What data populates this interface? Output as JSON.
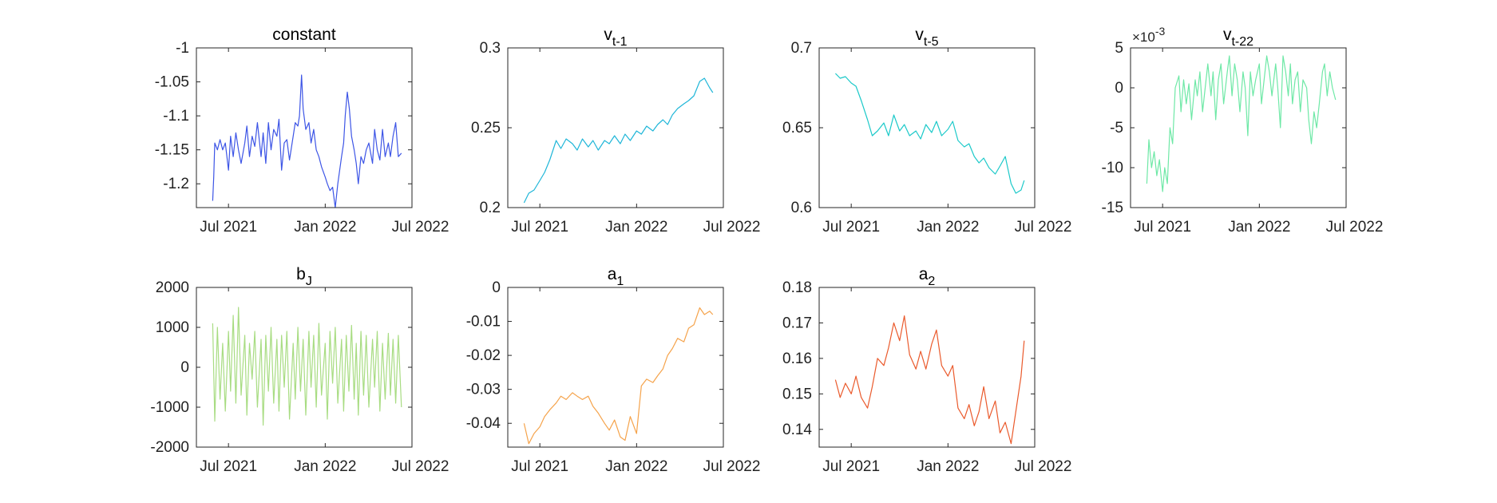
{
  "chart_data": [
    {
      "type": "line",
      "title": "constant",
      "color": "#3d55e6",
      "ylim": [
        -1.235,
        -1.0
      ],
      "yticks": [
        -1.2,
        -1.15,
        -1.1,
        -1.05,
        -1
      ],
      "ytick_labels": [
        "-1.2",
        "-1.15",
        "-1.1",
        "-1.05",
        "-1"
      ],
      "xlim": [
        "2021-05-01",
        "2022-06-15"
      ],
      "xticks": [
        "2021-07-01",
        "2022-01-01",
        "2022-07-01"
      ],
      "xtick_labels": [
        "Jul 2021",
        "Jan 2022",
        "Jul 2022"
      ],
      "x": [
        "2021-06-01",
        "2021-06-03",
        "2021-06-05",
        "2021-06-10",
        "2021-06-15",
        "2021-06-20",
        "2021-06-25",
        "2021-07-01",
        "2021-07-05",
        "2021-07-10",
        "2021-07-15",
        "2021-07-20",
        "2021-07-25",
        "2021-08-01",
        "2021-08-05",
        "2021-08-10",
        "2021-08-15",
        "2021-08-20",
        "2021-08-25",
        "2021-09-01",
        "2021-09-05",
        "2021-09-10",
        "2021-09-15",
        "2021-09-20",
        "2021-09-25",
        "2021-10-01",
        "2021-10-05",
        "2021-10-10",
        "2021-10-15",
        "2021-10-20",
        "2021-10-25",
        "2021-11-01",
        "2021-11-05",
        "2021-11-10",
        "2021-11-13",
        "2021-11-17",
        "2021-11-20",
        "2021-11-25",
        "2021-12-01",
        "2021-12-05",
        "2021-12-10",
        "2021-12-15",
        "2021-12-20",
        "2021-12-25",
        "2022-01-01",
        "2022-01-05",
        "2022-01-10",
        "2022-01-15",
        "2022-01-20",
        "2022-01-25",
        "2022-02-01",
        "2022-02-05",
        "2022-02-08",
        "2022-02-12",
        "2022-02-16",
        "2022-02-20",
        "2022-02-25",
        "2022-03-01",
        "2022-03-05",
        "2022-03-10",
        "2022-03-15",
        "2022-03-20",
        "2022-03-25",
        "2022-04-01",
        "2022-04-05",
        "2022-04-10",
        "2022-04-15",
        "2022-04-20",
        "2022-04-25",
        "2022-05-01",
        "2022-05-05",
        "2022-05-10",
        "2022-05-15",
        "2022-05-20",
        "2022-05-26"
      ],
      "y": [
        -1.225,
        -1.19,
        -1.14,
        -1.15,
        -1.135,
        -1.15,
        -1.14,
        -1.18,
        -1.13,
        -1.16,
        -1.125,
        -1.15,
        -1.17,
        -1.14,
        -1.115,
        -1.16,
        -1.13,
        -1.145,
        -1.11,
        -1.16,
        -1.125,
        -1.17,
        -1.11,
        -1.15,
        -1.12,
        -1.13,
        -1.105,
        -1.18,
        -1.14,
        -1.135,
        -1.165,
        -1.13,
        -1.11,
        -1.115,
        -1.1,
        -1.04,
        -1.09,
        -1.12,
        -1.11,
        -1.14,
        -1.12,
        -1.15,
        -1.16,
        -1.175,
        -1.19,
        -1.2,
        -1.21,
        -1.205,
        -1.235,
        -1.2,
        -1.16,
        -1.14,
        -1.1,
        -1.065,
        -1.09,
        -1.13,
        -1.15,
        -1.17,
        -1.2,
        -1.16,
        -1.17,
        -1.15,
        -1.14,
        -1.17,
        -1.12,
        -1.15,
        -1.165,
        -1.12,
        -1.16,
        -1.14,
        -1.16,
        -1.13,
        -1.11,
        -1.16,
        -1.155
      ]
    },
    {
      "type": "line",
      "title": "v",
      "title_subscript": "t-1",
      "color": "#1fb6d8",
      "ylim": [
        0.2,
        0.3
      ],
      "yticks": [
        0.2,
        0.25,
        0.3
      ],
      "ytick_labels": [
        "0.2",
        "0.25",
        "0.3"
      ],
      "xlim": [
        "2021-05-01",
        "2022-06-15"
      ],
      "xticks": [
        "2021-07-01",
        "2022-01-01",
        "2022-07-01"
      ],
      "xtick_labels": [
        "Jul 2021",
        "Jan 2022",
        "Jul 2022"
      ],
      "x": [
        "2021-06-01",
        "2021-06-10",
        "2021-06-20",
        "2021-07-01",
        "2021-07-10",
        "2021-07-20",
        "2021-08-01",
        "2021-08-10",
        "2021-08-20",
        "2021-09-01",
        "2021-09-10",
        "2021-09-20",
        "2021-10-01",
        "2021-10-10",
        "2021-10-20",
        "2021-11-01",
        "2021-11-10",
        "2021-11-20",
        "2021-12-01",
        "2021-12-10",
        "2021-12-20",
        "2022-01-01",
        "2022-01-10",
        "2022-01-20",
        "2022-02-01",
        "2022-02-10",
        "2022-02-20",
        "2022-03-01",
        "2022-03-10",
        "2022-03-20",
        "2022-04-01",
        "2022-04-10",
        "2022-04-20",
        "2022-05-01",
        "2022-05-10",
        "2022-05-20",
        "2022-05-26"
      ],
      "y": [
        0.203,
        0.209,
        0.211,
        0.217,
        0.222,
        0.23,
        0.242,
        0.237,
        0.243,
        0.24,
        0.236,
        0.243,
        0.238,
        0.242,
        0.236,
        0.242,
        0.24,
        0.245,
        0.24,
        0.246,
        0.242,
        0.248,
        0.246,
        0.251,
        0.248,
        0.252,
        0.255,
        0.252,
        0.258,
        0.262,
        0.265,
        0.267,
        0.27,
        0.279,
        0.281,
        0.275,
        0.272
      ]
    },
    {
      "type": "line",
      "title": "v",
      "title_subscript": "t-5",
      "color": "#1bc9c9",
      "ylim": [
        0.6,
        0.7
      ],
      "yticks": [
        0.6,
        0.65,
        0.7
      ],
      "ytick_labels": [
        "0.6",
        "0.65",
        "0.7"
      ],
      "xlim": [
        "2021-05-01",
        "2022-06-15"
      ],
      "xticks": [
        "2021-07-01",
        "2022-01-01",
        "2022-07-01"
      ],
      "xtick_labels": [
        "Jul 2021",
        "Jan 2022",
        "Jul 2022"
      ],
      "x": [
        "2021-06-01",
        "2021-06-10",
        "2021-06-20",
        "2021-07-01",
        "2021-07-10",
        "2021-07-20",
        "2021-08-01",
        "2021-08-10",
        "2021-08-20",
        "2021-09-01",
        "2021-09-10",
        "2021-09-20",
        "2021-10-01",
        "2021-10-10",
        "2021-10-20",
        "2021-11-01",
        "2021-11-10",
        "2021-11-20",
        "2021-12-01",
        "2021-12-10",
        "2021-12-20",
        "2022-01-01",
        "2022-01-10",
        "2022-01-20",
        "2022-02-01",
        "2022-02-10",
        "2022-02-20",
        "2022-03-01",
        "2022-03-10",
        "2022-03-20",
        "2022-04-01",
        "2022-04-10",
        "2022-04-20",
        "2022-05-01",
        "2022-05-10",
        "2022-05-20",
        "2022-05-26"
      ],
      "y": [
        0.684,
        0.681,
        0.682,
        0.678,
        0.676,
        0.667,
        0.655,
        0.645,
        0.648,
        0.653,
        0.645,
        0.658,
        0.648,
        0.652,
        0.645,
        0.648,
        0.643,
        0.652,
        0.647,
        0.654,
        0.645,
        0.649,
        0.654,
        0.642,
        0.638,
        0.64,
        0.632,
        0.628,
        0.631,
        0.625,
        0.621,
        0.626,
        0.632,
        0.615,
        0.609,
        0.611,
        0.617
      ]
    },
    {
      "type": "line",
      "title": "v",
      "title_subscript": "t-22",
      "color": "#6ee8a6",
      "ylim": [
        -15,
        5
      ],
      "yticks": [
        -15,
        -10,
        -5,
        0,
        5
      ],
      "ytick_labels": [
        "-15",
        "-10",
        "-5",
        "0",
        "5"
      ],
      "y_exponent": "×10",
      "y_exponent_power": "-3",
      "xlim": [
        "2021-05-01",
        "2022-06-15"
      ],
      "xticks": [
        "2021-07-01",
        "2022-01-01",
        "2022-07-01"
      ],
      "xtick_labels": [
        "Jul 2021",
        "Jan 2022",
        "Jul 2022"
      ],
      "x": [
        "2021-06-01",
        "2021-06-05",
        "2021-06-10",
        "2021-06-15",
        "2021-06-20",
        "2021-06-25",
        "2021-07-01",
        "2021-07-05",
        "2021-07-10",
        "2021-07-15",
        "2021-07-20",
        "2021-07-25",
        "2021-08-01",
        "2021-08-05",
        "2021-08-10",
        "2021-08-15",
        "2021-08-20",
        "2021-08-25",
        "2021-09-01",
        "2021-09-05",
        "2021-09-10",
        "2021-09-15",
        "2021-09-20",
        "2021-09-25",
        "2021-10-01",
        "2021-10-05",
        "2021-10-10",
        "2021-10-15",
        "2021-10-20",
        "2021-10-25",
        "2021-11-01",
        "2021-11-05",
        "2021-11-10",
        "2021-11-15",
        "2021-11-20",
        "2021-11-25",
        "2021-12-01",
        "2021-12-05",
        "2021-12-10",
        "2021-12-15",
        "2021-12-20",
        "2021-12-25",
        "2022-01-01",
        "2022-01-05",
        "2022-01-10",
        "2022-01-15",
        "2022-01-20",
        "2022-01-25",
        "2022-02-01",
        "2022-02-05",
        "2022-02-10",
        "2022-02-15",
        "2022-02-20",
        "2022-02-25",
        "2022-03-01",
        "2022-03-05",
        "2022-03-10",
        "2022-03-15",
        "2022-03-20",
        "2022-03-25",
        "2022-04-01",
        "2022-04-05",
        "2022-04-10",
        "2022-04-15",
        "2022-04-20",
        "2022-04-25",
        "2022-05-01",
        "2022-05-05",
        "2022-05-10",
        "2022-05-15",
        "2022-05-20",
        "2022-05-26"
      ],
      "y": [
        -12,
        -6.5,
        -10,
        -8,
        -11,
        -9,
        -13,
        -10,
        -12,
        -5,
        -7,
        0,
        1.5,
        -3,
        1,
        -2,
        0.5,
        -4,
        1,
        -1,
        2,
        -3,
        0,
        3,
        -1,
        2,
        -4,
        1,
        3,
        -2,
        2,
        4,
        -1,
        3,
        1,
        -3,
        2,
        0,
        -6,
        2,
        -1,
        1,
        3,
        -2,
        1,
        4,
        2,
        -1,
        3,
        0,
        -5,
        4,
        2,
        -1,
        3,
        -2,
        1,
        2,
        -3,
        1,
        0,
        -4,
        -7,
        -3,
        -5,
        -2,
        2,
        3,
        -1,
        2,
        0,
        -1.5
      ]
    },
    {
      "type": "line",
      "title": "b",
      "title_subscript": "J",
      "color": "#a8dc82",
      "ylim": [
        -2000,
        2000
      ],
      "yticks": [
        -2000,
        -1000,
        0,
        1000,
        2000
      ],
      "ytick_labels": [
        "-2000",
        "-1000",
        "0",
        "1000",
        "2000"
      ],
      "xlim": [
        "2021-05-01",
        "2022-06-15"
      ],
      "xticks": [
        "2021-07-01",
        "2022-01-01",
        "2022-07-01"
      ],
      "xtick_labels": [
        "Jul 2021",
        "Jan 2022",
        "Jul 2022"
      ],
      "x": [
        "2021-06-01",
        "2021-06-05",
        "2021-06-10",
        "2021-06-15",
        "2021-06-20",
        "2021-06-25",
        "2021-07-01",
        "2021-07-05",
        "2021-07-10",
        "2021-07-15",
        "2021-07-20",
        "2021-07-25",
        "2021-08-01",
        "2021-08-05",
        "2021-08-10",
        "2021-08-15",
        "2021-08-20",
        "2021-08-25",
        "2021-09-01",
        "2021-09-05",
        "2021-09-10",
        "2021-09-15",
        "2021-09-20",
        "2021-09-25",
        "2021-10-01",
        "2021-10-05",
        "2021-10-10",
        "2021-10-15",
        "2021-10-20",
        "2021-10-25",
        "2021-11-01",
        "2021-11-05",
        "2021-11-10",
        "2021-11-15",
        "2021-11-20",
        "2021-11-25",
        "2021-12-01",
        "2021-12-05",
        "2021-12-10",
        "2021-12-15",
        "2021-12-20",
        "2021-12-25",
        "2022-01-01",
        "2022-01-05",
        "2022-01-10",
        "2022-01-15",
        "2022-01-20",
        "2022-01-25",
        "2022-02-01",
        "2022-02-05",
        "2022-02-10",
        "2022-02-15",
        "2022-02-20",
        "2022-02-25",
        "2022-03-01",
        "2022-03-05",
        "2022-03-10",
        "2022-03-15",
        "2022-03-20",
        "2022-03-25",
        "2022-04-01",
        "2022-04-05",
        "2022-04-10",
        "2022-04-15",
        "2022-04-20",
        "2022-04-25",
        "2022-05-01",
        "2022-05-05",
        "2022-05-10",
        "2022-05-15",
        "2022-05-20",
        "2022-05-26"
      ],
      "y": [
        1100,
        -1350,
        1000,
        -800,
        600,
        -1100,
        900,
        -600,
        1300,
        -900,
        1500,
        -700,
        800,
        -1200,
        600,
        -300,
        900,
        -1000,
        700,
        -1450,
        800,
        -600,
        1000,
        -900,
        700,
        -1100,
        800,
        -500,
        900,
        -1300,
        600,
        -800,
        1000,
        -600,
        700,
        -1200,
        900,
        -500,
        800,
        -1000,
        1100,
        -700,
        600,
        -1300,
        900,
        -400,
        1000,
        -900,
        700,
        -1100,
        800,
        -600,
        1050,
        -800,
        600,
        -1200,
        900,
        -700,
        800,
        -1000,
        700,
        -500,
        900,
        -1100,
        600,
        -800,
        850,
        -700,
        700,
        -900,
        800,
        -1000
      ]
    },
    {
      "type": "line",
      "title": "a",
      "title_subscript": "1",
      "color": "#f5a34b",
      "ylim": [
        -0.047,
        0.0
      ],
      "yticks": [
        -0.04,
        -0.03,
        -0.02,
        -0.01,
        0
      ],
      "ytick_labels": [
        "-0.04",
        "-0.03",
        "-0.02",
        "-0.01",
        "0"
      ],
      "xlim": [
        "2021-05-01",
        "2022-06-15"
      ],
      "xticks": [
        "2021-07-01",
        "2022-01-01",
        "2022-07-01"
      ],
      "xtick_labels": [
        "Jul 2021",
        "Jan 2022",
        "Jul 2022"
      ],
      "x": [
        "2021-06-01",
        "2021-06-10",
        "2021-06-20",
        "2021-07-01",
        "2021-07-10",
        "2021-07-20",
        "2021-08-01",
        "2021-08-10",
        "2021-08-20",
        "2021-09-01",
        "2021-09-10",
        "2021-09-20",
        "2021-10-01",
        "2021-10-10",
        "2021-10-20",
        "2021-11-01",
        "2021-11-10",
        "2021-11-20",
        "2021-12-01",
        "2021-12-10",
        "2021-12-20",
        "2022-01-01",
        "2022-01-10",
        "2022-01-20",
        "2022-02-01",
        "2022-02-10",
        "2022-02-20",
        "2022-03-01",
        "2022-03-10",
        "2022-03-20",
        "2022-04-01",
        "2022-04-10",
        "2022-04-20",
        "2022-05-01",
        "2022-05-10",
        "2022-05-20",
        "2022-05-26"
      ],
      "y": [
        -0.04,
        -0.046,
        -0.043,
        -0.041,
        -0.038,
        -0.036,
        -0.034,
        -0.032,
        -0.033,
        -0.031,
        -0.032,
        -0.033,
        -0.032,
        -0.035,
        -0.037,
        -0.04,
        -0.042,
        -0.039,
        -0.044,
        -0.045,
        -0.038,
        -0.043,
        -0.029,
        -0.027,
        -0.028,
        -0.026,
        -0.024,
        -0.02,
        -0.018,
        -0.015,
        -0.016,
        -0.012,
        -0.011,
        -0.006,
        -0.008,
        -0.007,
        -0.008
      ]
    },
    {
      "type": "line",
      "title": "a",
      "title_subscript": "2",
      "color": "#ea5a2c",
      "ylim": [
        0.135,
        0.18
      ],
      "yticks": [
        0.14,
        0.15,
        0.16,
        0.17,
        0.18
      ],
      "ytick_labels": [
        "0.14",
        "0.15",
        "0.16",
        "0.17",
        "0.18"
      ],
      "xlim": [
        "2021-05-01",
        "2022-06-15"
      ],
      "xticks": [
        "2021-07-01",
        "2022-01-01",
        "2022-07-01"
      ],
      "xtick_labels": [
        "Jul 2021",
        "Jan 2022",
        "Jul 2022"
      ],
      "x": [
        "2021-06-01",
        "2021-06-10",
        "2021-06-20",
        "2021-07-01",
        "2021-07-10",
        "2021-07-20",
        "2021-08-01",
        "2021-08-10",
        "2021-08-20",
        "2021-09-01",
        "2021-09-10",
        "2021-09-20",
        "2021-10-01",
        "2021-10-10",
        "2021-10-20",
        "2021-11-01",
        "2021-11-10",
        "2021-11-20",
        "2021-12-01",
        "2021-12-10",
        "2021-12-20",
        "2022-01-01",
        "2022-01-10",
        "2022-01-20",
        "2022-02-01",
        "2022-02-10",
        "2022-02-20",
        "2022-03-01",
        "2022-03-10",
        "2022-03-20",
        "2022-04-01",
        "2022-04-10",
        "2022-04-20",
        "2022-05-01",
        "2022-05-10",
        "2022-05-20",
        "2022-05-26"
      ],
      "y": [
        0.154,
        0.149,
        0.153,
        0.15,
        0.155,
        0.149,
        0.146,
        0.152,
        0.16,
        0.158,
        0.163,
        0.17,
        0.165,
        0.172,
        0.161,
        0.157,
        0.162,
        0.157,
        0.164,
        0.168,
        0.158,
        0.155,
        0.158,
        0.146,
        0.143,
        0.147,
        0.141,
        0.145,
        0.152,
        0.143,
        0.148,
        0.139,
        0.142,
        0.136,
        0.145,
        0.155,
        0.165
      ]
    }
  ]
}
